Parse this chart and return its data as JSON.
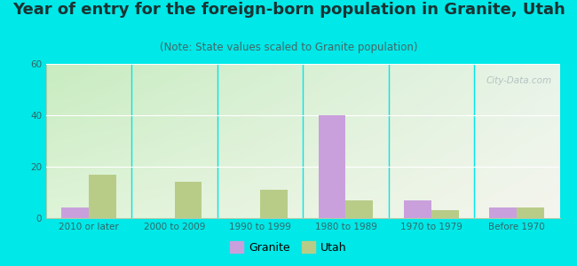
{
  "title": "Year of entry for the foreign-born population in Granite, Utah",
  "subtitle": "(Note: State values scaled to Granite population)",
  "categories": [
    "2010 or later",
    "2000 to 2009",
    "1990 to 1999",
    "1980 to 1989",
    "1970 to 1979",
    "Before 1970"
  ],
  "granite_values": [
    4,
    0,
    0,
    40,
    7,
    4
  ],
  "utah_values": [
    17,
    14,
    11,
    7,
    3,
    4
  ],
  "granite_color": "#c9a0dc",
  "utah_color": "#b8cc88",
  "background_outer": "#00e8e8",
  "ylim": [
    0,
    60
  ],
  "yticks": [
    0,
    20,
    40,
    60
  ],
  "bar_width": 0.32,
  "legend_labels": [
    "Granite",
    "Utah"
  ],
  "title_fontsize": 13,
  "subtitle_fontsize": 8.5,
  "tick_fontsize": 7.5,
  "legend_fontsize": 9,
  "grad_top_left": "#c8ecc0",
  "grad_top_right": "#e8f4e8",
  "grad_bot_left": "#dff4d8",
  "grad_bot_right": "#f5f5ee"
}
